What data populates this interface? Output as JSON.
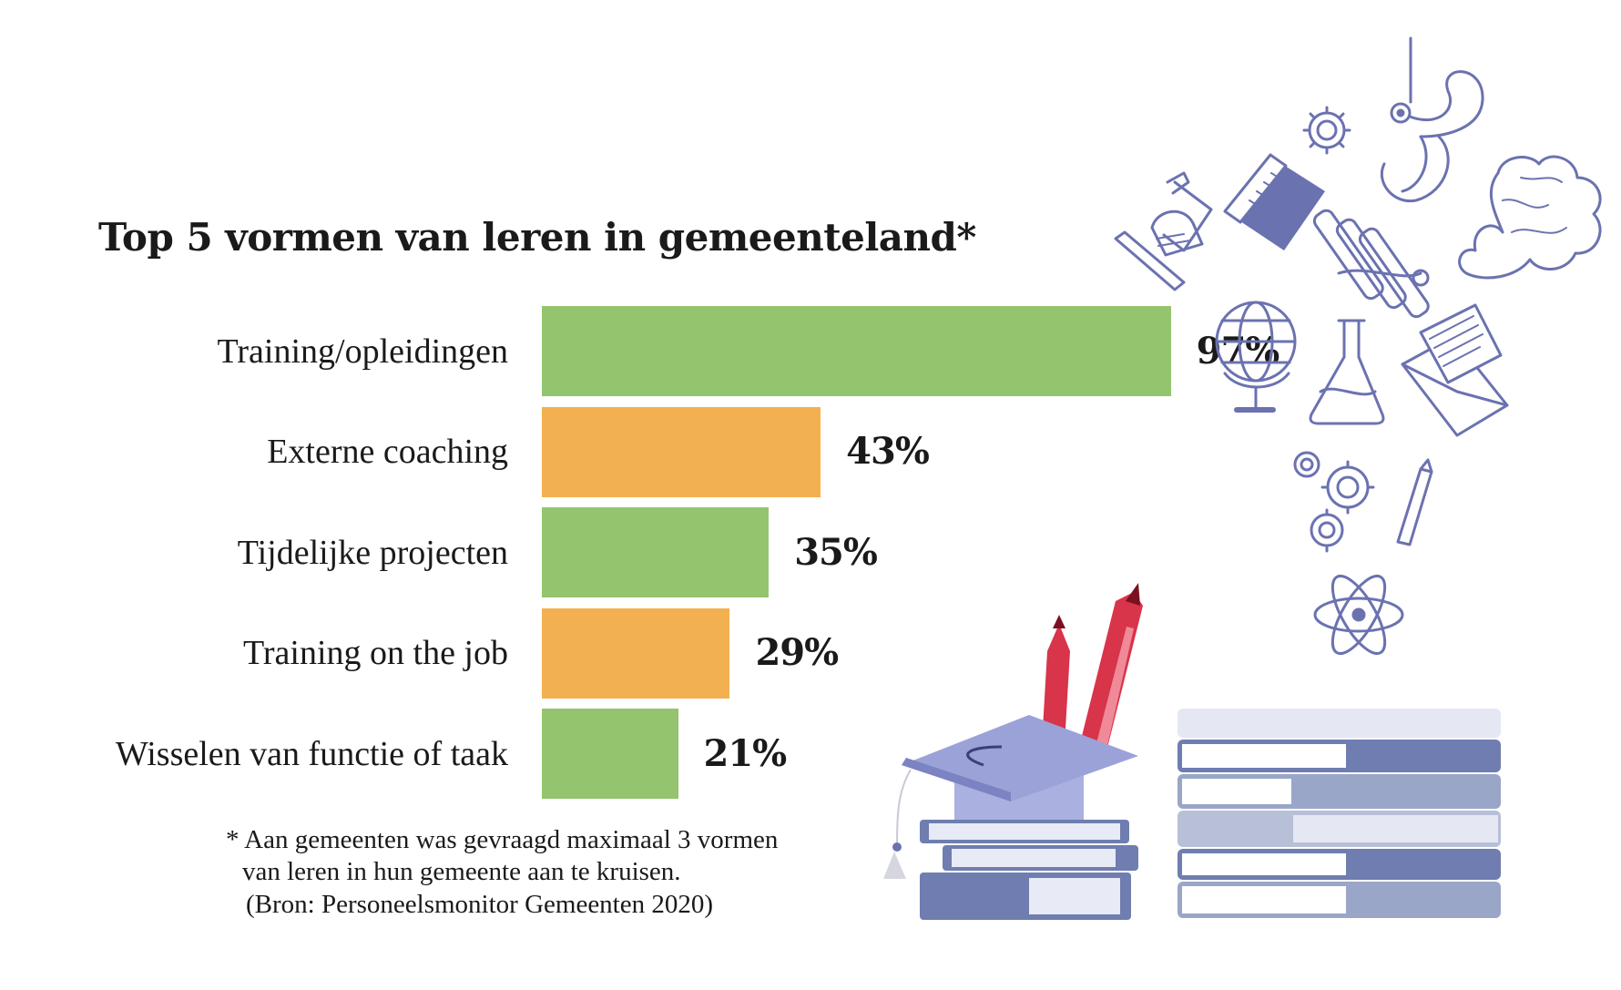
{
  "chart_data": {
    "type": "bar",
    "orientation": "horizontal",
    "title": "Top 5 vormen van leren in gemeenteland*",
    "categories": [
      "Training/opleidingen",
      "Externe coaching",
      "Tijdelijke projecten",
      "Training on the job",
      "Wisselen van functie of taak"
    ],
    "values": [
      97,
      43,
      35,
      29,
      21
    ],
    "value_labels": [
      "97%",
      "43%",
      "35%",
      "29%",
      "21%"
    ],
    "bar_colors": [
      "#94c46e",
      "#f3b050",
      "#94c46e",
      "#f3b050",
      "#94c46e"
    ],
    "xlim": [
      0,
      100
    ],
    "grid": false
  },
  "footnote": {
    "line1": "* Aan gemeenten was gevraagd maximaal 3 vormen",
    "line2": "van leren in hun gemeente aan te kruisen.",
    "line3": "(Bron: Personeelsmonitor Gemeenten 2020)"
  },
  "colors": {
    "green": "#94c46e",
    "orange": "#f3b050",
    "illustration_blue": "#6b72b0",
    "pencil_red": "#d8344a"
  },
  "illustration_icons": [
    "stethoscope-icon",
    "gear-icon",
    "microscope-icon",
    "book-icon",
    "test-tubes-icon",
    "brain-icon",
    "globe-icon",
    "flask-icon",
    "envelope-icon",
    "gears-icon",
    "pencil-icon",
    "atom-icon",
    "graduation-cap-icon",
    "books-stack-icon"
  ]
}
